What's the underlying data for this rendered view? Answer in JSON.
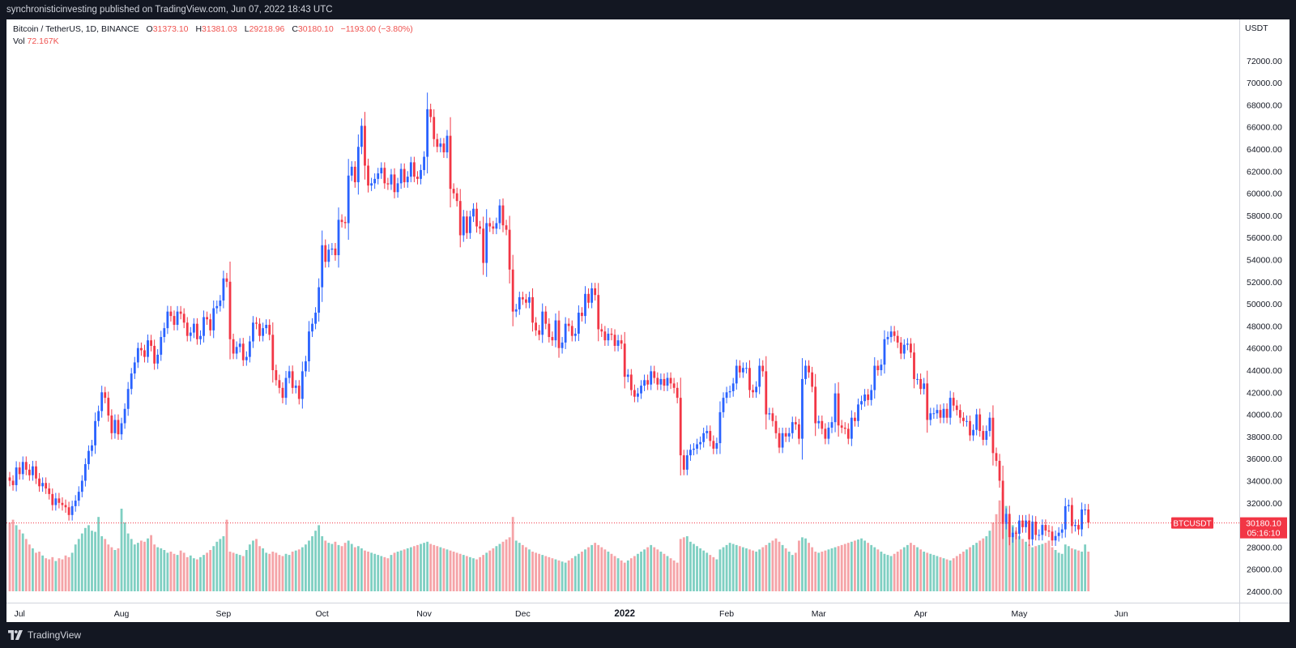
{
  "header": {
    "published_text": "synchronisticinvesting published on TradingView.com, Jun 07, 2022 18:43 UTC"
  },
  "legend": {
    "symbol": "Bitcoin / TetherUS, 1D, BINANCE",
    "o_label": "O",
    "o_value": "31373.10",
    "h_label": "H",
    "h_value": "31381.03",
    "l_label": "L",
    "l_value": "29218.96",
    "c_label": "C",
    "c_value": "30180.10",
    "change": "−1193.00 (−3.80%)",
    "vol_label": "Vol",
    "vol_value": "72.167K"
  },
  "price_axis": {
    "currency": "USDT"
  },
  "last_price_label": {
    "symbol": "BTCUSDT",
    "price": "30180.10",
    "countdown": "05:16:10"
  },
  "footer": {
    "brand": "TradingView",
    "brand_icon": "tradingview-logo-icon"
  },
  "colors": {
    "up": "#2962ff",
    "down": "#f23645",
    "vol_up": "#7fcfc2",
    "vol_down": "#f5a3a7",
    "frame": "#131722",
    "grid_text": "#131722"
  },
  "chart_data": {
    "type": "candlestick",
    "symbol": "BTCUSDT",
    "interval": "1D",
    "ylim": [
      22000,
      73500
    ],
    "yticks": [
      24000,
      26000,
      28000,
      30000,
      32000,
      34000,
      36000,
      38000,
      40000,
      42000,
      44000,
      46000,
      48000,
      50000,
      52000,
      54000,
      56000,
      58000,
      60000,
      62000,
      64000,
      66000,
      68000,
      70000,
      72000
    ],
    "xticks": [
      {
        "label": "Jul",
        "index": 3
      },
      {
        "label": "Aug",
        "index": 34
      },
      {
        "label": "Sep",
        "index": 65
      },
      {
        "label": "Oct",
        "index": 95
      },
      {
        "label": "Nov",
        "index": 126
      },
      {
        "label": "Dec",
        "index": 156
      },
      {
        "label": "2022",
        "index": 187
      },
      {
        "label": "Feb",
        "index": 218
      },
      {
        "label": "Mar",
        "index": 246
      },
      {
        "label": "Apr",
        "index": 277
      },
      {
        "label": "May",
        "index": 307
      },
      {
        "label": "Jun",
        "index": 338
      }
    ],
    "last_close": 30180.1,
    "closes": [
      34000,
      33600,
      35200,
      34600,
      35700,
      35000,
      34500,
      35300,
      34200,
      33500,
      33800,
      33300,
      32800,
      31800,
      32400,
      32000,
      31800,
      31600,
      30900,
      31700,
      32200,
      33000,
      34000,
      35500,
      36700,
      37200,
      39400,
      40300,
      42000,
      41500,
      39900,
      38300,
      39500,
      38200,
      39200,
      40500,
      42300,
      43700,
      44700,
      46000,
      45800,
      45200,
      46700,
      46200,
      44600,
      45400,
      47000,
      47800,
      49300,
      48900,
      48100,
      49300,
      49100,
      48300,
      47100,
      47400,
      48200,
      46800,
      47100,
      48800,
      48600,
      47600,
      49600,
      49800,
      50300,
      52300,
      52000,
      46800,
      45500,
      46100,
      46400,
      44900,
      45200,
      46600,
      48300,
      48200,
      47100,
      47800,
      48100,
      47200,
      44000,
      43100,
      42400,
      41500,
      43300,
      43900,
      42400,
      42600,
      41400,
      43900,
      44800,
      47500,
      48200,
      49200,
      51500,
      55300,
      53800,
      54900,
      55000,
      54400,
      57600,
      57400,
      57300,
      61600,
      62400,
      61000,
      64200,
      66100,
      62500,
      60700,
      60900,
      61300,
      61800,
      62300,
      60900,
      60800,
      61700,
      60100,
      60900,
      62200,
      61000,
      61500,
      62800,
      61500,
      61300,
      62100,
      63300,
      67600,
      66900,
      64900,
      64200,
      64500,
      63700,
      65200,
      60400,
      60000,
      59300,
      56200,
      57900,
      56400,
      57900,
      58600,
      57000,
      56800,
      53700,
      57300,
      57000,
      56800,
      57300,
      58900,
      57100,
      56700,
      53100,
      49300,
      49500,
      50600,
      50400,
      50100,
      50600,
      48300,
      47600,
      47200,
      49300,
      48200,
      47000,
      46700,
      48500,
      46000,
      46500,
      48200,
      48000,
      47100,
      47300,
      49200,
      48900,
      50900,
      50100,
      51400,
      50800,
      47700,
      47500,
      46700,
      47300,
      47200,
      46200,
      46700,
      46400,
      43400,
      43600,
      42200,
      41600,
      41900,
      42600,
      43100,
      42700,
      43900,
      43300,
      42700,
      43200,
      42600,
      43300,
      42800,
      42400,
      41500,
      36300,
      35000,
      36300,
      36800,
      36900,
      37300,
      37500,
      38300,
      38500,
      37600,
      36900,
      37400,
      40200,
      41500,
      42000,
      42100,
      42800,
      44400,
      43800,
      44200,
      44200,
      42200,
      42000,
      42500,
      44400,
      43900,
      40000,
      40100,
      39400,
      38300,
      37000,
      38300,
      38000,
      38300,
      39300,
      39100,
      37800,
      43200,
      44400,
      43800,
      42500,
      39200,
      39400,
      38700,
      37800,
      38800,
      39300,
      41900,
      39000,
      38800,
      38700,
      37800,
      39700,
      39400,
      40900,
      41200,
      41800,
      41300,
      42200,
      44400,
      44000,
      44500,
      46800,
      47000,
      47500,
      47100,
      46500,
      45500,
      46300,
      46400,
      45600,
      43200,
      43200,
      42300,
      42800,
      39500,
      40100,
      40100,
      40400,
      39700,
      40500,
      39700,
      41500,
      40800,
      40400,
      39700,
      39400,
      39400,
      38100,
      38600,
      40000,
      38500,
      37700,
      38500,
      39700,
      36500,
      35800,
      34000,
      30100,
      31000,
      28900,
      29300,
      29200,
      30400,
      29800,
      30400,
      28700,
      30300,
      29100,
      29100,
      30000,
      29500,
      29400,
      28600,
      29000,
      29300,
      29600,
      31700,
      31800,
      29900,
      30000,
      29600,
      31400,
      31400,
      30200
    ],
    "volume_k": [
      125,
      130,
      120,
      112,
      105,
      95,
      85,
      78,
      70,
      72,
      65,
      60,
      58,
      62,
      55,
      60,
      58,
      65,
      62,
      70,
      85,
      95,
      105,
      115,
      120,
      110,
      108,
      135,
      100,
      95,
      85,
      80,
      75,
      78,
      150,
      125,
      105,
      95,
      85,
      88,
      92,
      90,
      96,
      102,
      85,
      80,
      78,
      75,
      70,
      72,
      68,
      66,
      74,
      70,
      62,
      65,
      60,
      58,
      62,
      66,
      70,
      75,
      82,
      90,
      95,
      100,
      130,
      72,
      70,
      68,
      66,
      64,
      75,
      85,
      92,
      95,
      82,
      78,
      70,
      68,
      72,
      70,
      66,
      64,
      68,
      66,
      72,
      74,
      76,
      80,
      85,
      92,
      100,
      110,
      120,
      100,
      92,
      88,
      86,
      90,
      84,
      82,
      88,
      92,
      86,
      80,
      82,
      78,
      74,
      72,
      70,
      68,
      66,
      64,
      62,
      60,
      66,
      70,
      72,
      74,
      76,
      78,
      80,
      82,
      84,
      86,
      88,
      90,
      86,
      84,
      82,
      80,
      78,
      76,
      74,
      72,
      70,
      68,
      66,
      64,
      62,
      60,
      58,
      62,
      66,
      70,
      74,
      78,
      82,
      86,
      90,
      94,
      98,
      135,
      92,
      88,
      84,
      80,
      76,
      72,
      70,
      68,
      66,
      64,
      62,
      60,
      58,
      56,
      54,
      52,
      56,
      60,
      64,
      68,
      72,
      76,
      80,
      84,
      88,
      84,
      80,
      76,
      72,
      68,
      64,
      60,
      56,
      52,
      56,
      60,
      64,
      68,
      72,
      76,
      80,
      84,
      80,
      76,
      72,
      68,
      64,
      60,
      56,
      52,
      95,
      98,
      100,
      90,
      86,
      82,
      78,
      74,
      70,
      66,
      62,
      58,
      76,
      80,
      84,
      88,
      86,
      84,
      82,
      80,
      78,
      76,
      74,
      72,
      76,
      80,
      84,
      88,
      92,
      96,
      90,
      84,
      78,
      72,
      66,
      70,
      92,
      98,
      96,
      88,
      80,
      72,
      70,
      72,
      74,
      76,
      78,
      80,
      82,
      84,
      86,
      88,
      90,
      92,
      94,
      96,
      92,
      88,
      84,
      80,
      76,
      72,
      68,
      66,
      64,
      68,
      72,
      76,
      80,
      84,
      88,
      84,
      80,
      76,
      72,
      70,
      68,
      66,
      64,
      62,
      60,
      58,
      56,
      60,
      64,
      68,
      72,
      76,
      80,
      84,
      88,
      92,
      96,
      100,
      110,
      125,
      140,
      165,
      180,
      155,
      135,
      120,
      110,
      100,
      95,
      90,
      85,
      80,
      82,
      84,
      86,
      88,
      92,
      80,
      75,
      70,
      68,
      85,
      82,
      78,
      76,
      74,
      72,
      85,
      72
    ]
  }
}
